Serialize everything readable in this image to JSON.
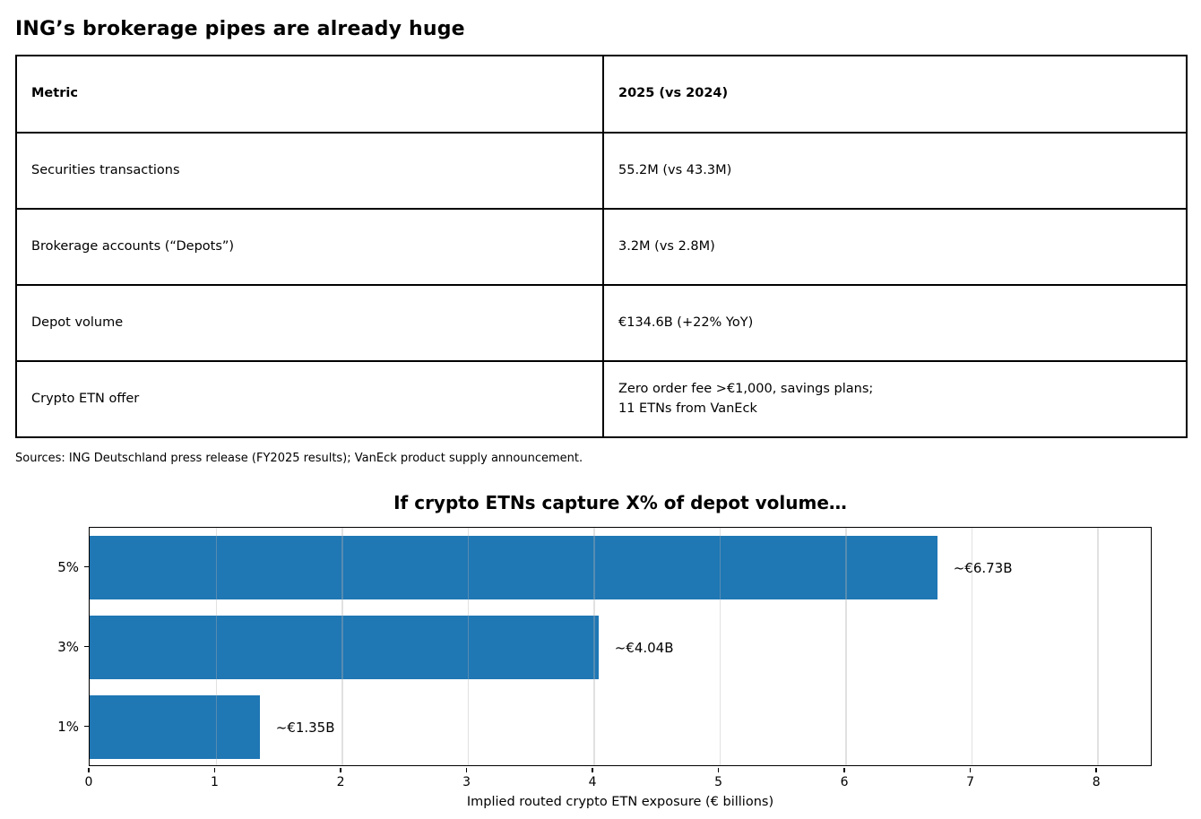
{
  "page": {
    "title": "ING’s brokerage pipes are already huge",
    "sources": "Sources: ING Deutschland press release (FY2025 results); VanEck product supply announcement."
  },
  "table": {
    "headers": [
      "Metric",
      "2025 (vs 2024)"
    ],
    "rows": [
      [
        "Securities transactions",
        "55.2M (vs 43.3M)"
      ],
      [
        "Brokerage accounts (“Depots”)",
        "3.2M (vs 2.8M)"
      ],
      [
        "Depot volume",
        "€134.6B (+22% YoY)"
      ],
      [
        "Crypto ETN offer",
        "Zero order fee >€1,000, savings plans;\n11 ETNs from VanEck"
      ]
    ]
  },
  "chart_data": {
    "type": "bar",
    "orientation": "horizontal",
    "title": "If crypto ETNs capture X% of depot volume…",
    "categories": [
      "5%",
      "3%",
      "1%"
    ],
    "values": [
      6.73,
      4.04,
      1.35
    ],
    "bar_labels": [
      "~€6.73B",
      "~€4.04B",
      "~€1.35B"
    ],
    "xlabel": "Implied routed crypto ETN exposure (€ billions)",
    "xlim": [
      0,
      8.44
    ],
    "xticks": [
      0,
      1,
      2,
      3,
      4,
      5,
      6,
      7,
      8
    ],
    "bar_height_frac": 0.787,
    "bar_color": "#1f77b4",
    "grid": true,
    "legend_position": "none"
  }
}
